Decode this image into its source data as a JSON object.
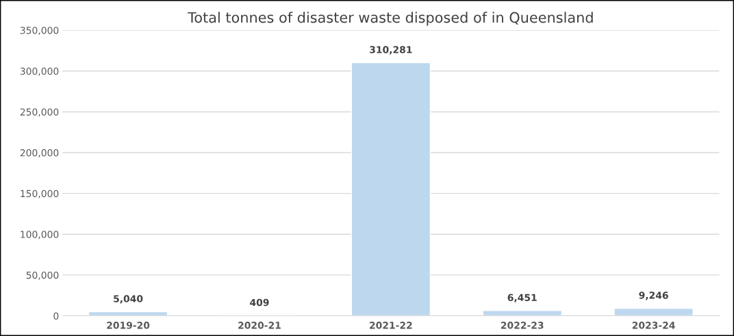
{
  "chart_data": {
    "type": "bar",
    "title": "Total tonnes of disaster waste disposed of in Queensland",
    "categories": [
      "2019-20",
      "2020-21",
      "2021-22",
      "2022-23",
      "2023-24"
    ],
    "values": [
      5040,
      409,
      310281,
      6451,
      9246
    ],
    "color": "#bdd7ee",
    "ylim": [
      0,
      350000
    ],
    "yticks": [
      {
        "value": 0,
        "label": "0"
      },
      {
        "value": 50000,
        "label": "50,000"
      },
      {
        "value": 100000,
        "label": "100,000"
      },
      {
        "value": 150000,
        "label": "150,000"
      },
      {
        "value": 200000,
        "label": "200,000"
      },
      {
        "value": 250000,
        "label": "250,000"
      },
      {
        "value": 300000,
        "label": "300,000"
      },
      {
        "value": 350000,
        "label": "350,000"
      }
    ],
    "value_labels": [
      "5,040",
      "409",
      "310,281",
      "6,451",
      "9,246"
    ],
    "grid": "y",
    "legend": false
  }
}
